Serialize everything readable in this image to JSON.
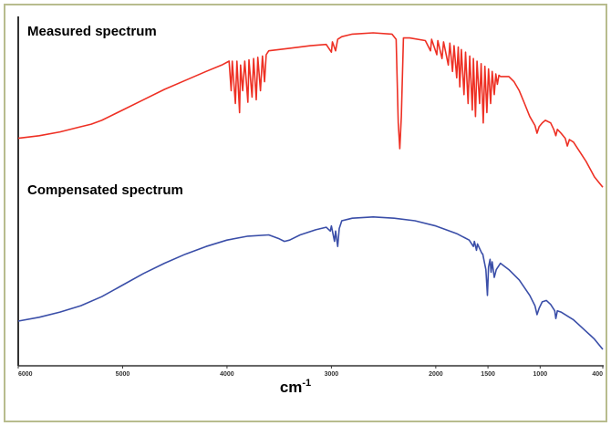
{
  "chart_data": {
    "type": "line",
    "xlabel": "cm-1",
    "xlabel_main": "cm",
    "xlabel_sup": "-1",
    "xlim": [
      6000,
      400
    ],
    "x_reversed": true,
    "ticks": [
      "6000",
      "5000",
      "4000",
      "3000",
      "2000",
      "1500",
      "1000",
      "400"
    ],
    "tick_values": [
      6000,
      5000,
      4000,
      3000,
      2000,
      1500,
      1000,
      400
    ],
    "series": [
      {
        "name": "Measured spectrum",
        "color": "#ee3024",
        "points": [
          [
            6000,
            0.18
          ],
          [
            5800,
            0.2
          ],
          [
            5600,
            0.23
          ],
          [
            5400,
            0.27
          ],
          [
            5300,
            0.29
          ],
          [
            5200,
            0.32
          ],
          [
            5000,
            0.4
          ],
          [
            4800,
            0.48
          ],
          [
            4600,
            0.56
          ],
          [
            4400,
            0.63
          ],
          [
            4200,
            0.7
          ],
          [
            4050,
            0.75
          ],
          [
            3980,
            0.78
          ],
          [
            3960,
            0.55
          ],
          [
            3950,
            0.78
          ],
          [
            3920,
            0.45
          ],
          [
            3905,
            0.78
          ],
          [
            3880,
            0.38
          ],
          [
            3870,
            0.75
          ],
          [
            3850,
            0.55
          ],
          [
            3830,
            0.78
          ],
          [
            3800,
            0.46
          ],
          [
            3790,
            0.79
          ],
          [
            3760,
            0.5
          ],
          [
            3745,
            0.8
          ],
          [
            3720,
            0.48
          ],
          [
            3705,
            0.81
          ],
          [
            3680,
            0.55
          ],
          [
            3660,
            0.82
          ],
          [
            3640,
            0.62
          ],
          [
            3625,
            0.83
          ],
          [
            3600,
            0.86
          ],
          [
            3400,
            0.88
          ],
          [
            3200,
            0.9
          ],
          [
            3050,
            0.91
          ],
          [
            3000,
            0.85
          ],
          [
            2990,
            0.93
          ],
          [
            2960,
            0.86
          ],
          [
            2940,
            0.95
          ],
          [
            2900,
            0.97
          ],
          [
            2800,
            0.99
          ],
          [
            2600,
            1.0
          ],
          [
            2420,
            0.99
          ],
          [
            2380,
            0.95
          ],
          [
            2360,
            0.3
          ],
          [
            2345,
            0.1
          ],
          [
            2330,
            0.35
          ],
          [
            2310,
            0.96
          ],
          [
            2250,
            0.96
          ],
          [
            2100,
            0.94
          ],
          [
            2050,
            0.86
          ],
          [
            2040,
            0.95
          ],
          [
            1990,
            0.83
          ],
          [
            1980,
            0.94
          ],
          [
            1940,
            0.8
          ],
          [
            1925,
            0.93
          ],
          [
            1880,
            0.75
          ],
          [
            1865,
            0.92
          ],
          [
            1840,
            0.7
          ],
          [
            1825,
            0.9
          ],
          [
            1800,
            0.65
          ],
          [
            1785,
            0.89
          ],
          [
            1770,
            0.58
          ],
          [
            1755,
            0.87
          ],
          [
            1730,
            0.52
          ],
          [
            1715,
            0.85
          ],
          [
            1690,
            0.45
          ],
          [
            1675,
            0.82
          ],
          [
            1650,
            0.4
          ],
          [
            1640,
            0.8
          ],
          [
            1620,
            0.35
          ],
          [
            1605,
            0.78
          ],
          [
            1580,
            0.45
          ],
          [
            1565,
            0.76
          ],
          [
            1545,
            0.3
          ],
          [
            1530,
            0.74
          ],
          [
            1510,
            0.38
          ],
          [
            1495,
            0.72
          ],
          [
            1475,
            0.45
          ],
          [
            1460,
            0.7
          ],
          [
            1440,
            0.52
          ],
          [
            1425,
            0.68
          ],
          [
            1410,
            0.6
          ],
          [
            1395,
            0.67
          ],
          [
            1380,
            0.66
          ],
          [
            1300,
            0.66
          ],
          [
            1250,
            0.62
          ],
          [
            1200,
            0.55
          ],
          [
            1150,
            0.45
          ],
          [
            1100,
            0.35
          ],
          [
            1050,
            0.28
          ],
          [
            1030,
            0.22
          ],
          [
            1010,
            0.27
          ],
          [
            980,
            0.3
          ],
          [
            950,
            0.32
          ],
          [
            900,
            0.3
          ],
          [
            870,
            0.25
          ],
          [
            850,
            0.2
          ],
          [
            835,
            0.25
          ],
          [
            800,
            0.22
          ],
          [
            760,
            0.18
          ],
          [
            740,
            0.12
          ],
          [
            720,
            0.17
          ],
          [
            680,
            0.15
          ],
          [
            640,
            0.1
          ],
          [
            600,
            0.05
          ],
          [
            560,
            0.0
          ],
          [
            520,
            -0.06
          ],
          [
            480,
            -0.12
          ],
          [
            440,
            -0.16
          ],
          [
            400,
            -0.2
          ]
        ]
      },
      {
        "name": "Compensated spectrum",
        "color": "#3a4ea8",
        "points": [
          [
            6000,
            0.0
          ],
          [
            5800,
            0.03
          ],
          [
            5600,
            0.07
          ],
          [
            5400,
            0.12
          ],
          [
            5200,
            0.19
          ],
          [
            5000,
            0.28
          ],
          [
            4800,
            0.37
          ],
          [
            4600,
            0.45
          ],
          [
            4400,
            0.52
          ],
          [
            4200,
            0.58
          ],
          [
            4000,
            0.63
          ],
          [
            3800,
            0.66
          ],
          [
            3600,
            0.67
          ],
          [
            3500,
            0.64
          ],
          [
            3450,
            0.62
          ],
          [
            3400,
            0.63
          ],
          [
            3300,
            0.67
          ],
          [
            3150,
            0.71
          ],
          [
            3050,
            0.73
          ],
          [
            3010,
            0.7
          ],
          [
            3000,
            0.74
          ],
          [
            2970,
            0.62
          ],
          [
            2960,
            0.7
          ],
          [
            2940,
            0.58
          ],
          [
            2925,
            0.72
          ],
          [
            2900,
            0.78
          ],
          [
            2800,
            0.8
          ],
          [
            2600,
            0.81
          ],
          [
            2400,
            0.8
          ],
          [
            2200,
            0.78
          ],
          [
            2000,
            0.74
          ],
          [
            1800,
            0.68
          ],
          [
            1680,
            0.63
          ],
          [
            1640,
            0.58
          ],
          [
            1630,
            0.62
          ],
          [
            1610,
            0.55
          ],
          [
            1600,
            0.6
          ],
          [
            1560,
            0.53
          ],
          [
            1550,
            0.52
          ],
          [
            1520,
            0.4
          ],
          [
            1505,
            0.2
          ],
          [
            1495,
            0.42
          ],
          [
            1480,
            0.48
          ],
          [
            1470,
            0.38
          ],
          [
            1460,
            0.46
          ],
          [
            1440,
            0.34
          ],
          [
            1420,
            0.4
          ],
          [
            1380,
            0.45
          ],
          [
            1300,
            0.4
          ],
          [
            1200,
            0.32
          ],
          [
            1100,
            0.2
          ],
          [
            1050,
            0.12
          ],
          [
            1030,
            0.05
          ],
          [
            1010,
            0.1
          ],
          [
            980,
            0.15
          ],
          [
            940,
            0.16
          ],
          [
            900,
            0.13
          ],
          [
            860,
            0.08
          ],
          [
            850,
            0.02
          ],
          [
            835,
            0.08
          ],
          [
            800,
            0.07
          ],
          [
            760,
            0.05
          ],
          [
            720,
            0.03
          ],
          [
            680,
            0.01
          ],
          [
            640,
            -0.02
          ],
          [
            600,
            -0.05
          ],
          [
            560,
            -0.08
          ],
          [
            520,
            -0.11
          ],
          [
            480,
            -0.14
          ],
          [
            440,
            -0.18
          ],
          [
            400,
            -0.22
          ]
        ]
      }
    ]
  },
  "labels": {
    "measured": "Measured spectrum",
    "compensated": "Compensated spectrum"
  }
}
